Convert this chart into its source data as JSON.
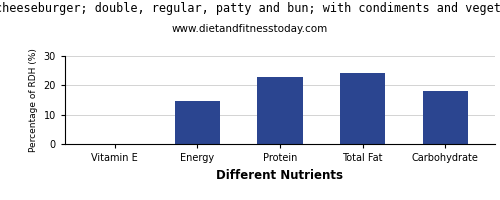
{
  "title": "cheeseburger; double, regular, patty and bun; with condiments and vegeta",
  "subtitle": "www.dietandfitnesstoday.com",
  "xlabel": "Different Nutrients",
  "ylabel": "Percentage of RDH (%)",
  "categories": [
    "Vitamin E",
    "Energy",
    "Protein",
    "Total Fat",
    "Carbohydrate"
  ],
  "values": [
    0.0,
    14.5,
    23.0,
    24.2,
    18.2
  ],
  "bar_color": "#2b4590",
  "ylim": [
    0,
    30
  ],
  "yticks": [
    0,
    10,
    20,
    30
  ],
  "title_fontsize": 8.5,
  "subtitle_fontsize": 7.5,
  "xlabel_fontsize": 8.5,
  "ylabel_fontsize": 6.5,
  "tick_fontsize": 7,
  "xlabel_bold": true,
  "background_color": "#ffffff",
  "plot_bg_color": "#ffffff"
}
